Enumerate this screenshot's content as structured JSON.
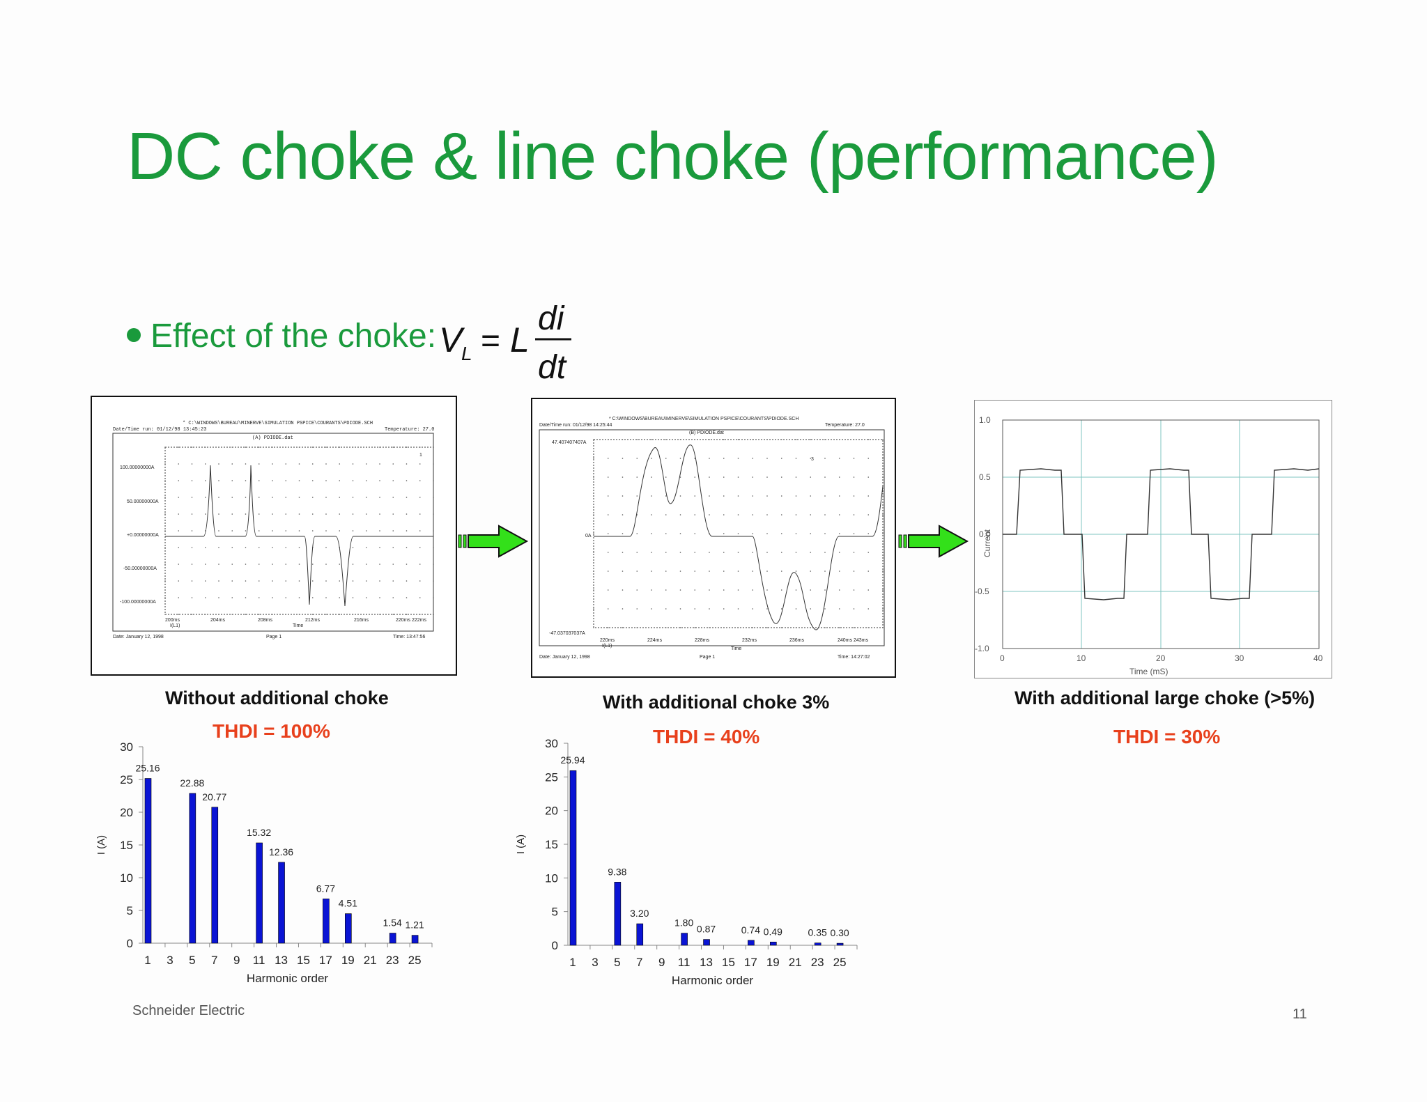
{
  "slide": {
    "title": "DC choke & line choke (performance)",
    "bullet": "Effect of the choke:",
    "formula": {
      "lhs": "V",
      "lhs_sub": "L",
      "eq": "=",
      "coef": "L",
      "num": "di",
      "den": "dt"
    },
    "footer_left": "Schneider Electric",
    "page_number": "11"
  },
  "colors": {
    "title": "#1a9a3c",
    "thdi": "#e8401c",
    "bar": "#0a14d4",
    "arrow": "#33e01a"
  },
  "panels": [
    {
      "caption": "Without additional choke",
      "thdi": "THDI = 100%",
      "scope": {
        "path": "* C:\\WINDOWS\\BUREAU\\MINERVE\\SIMULATION PSPICE\\COURANTS\\PDIODE.SCH",
        "date_run": "Date/Time run: 01/12/98 13:45:23",
        "temperature": "Temperature: 27.0",
        "dataset": "(A) PDIODE.dat",
        "ylabels": [
          "100.00000000A",
          "50.00000000A",
          "+0.00000000A",
          "-50.00000000A",
          "-100.00000000A"
        ],
        "xlabels": [
          "200ms",
          "204ms",
          "208ms",
          "212ms",
          "216ms",
          "220ms 222ms"
        ],
        "legend": "I(L1)",
        "xtitle": "Time",
        "date": "Date: January 12, 1998",
        "page": "Page 1",
        "time": "Time: 13:47:56",
        "marker": "1"
      }
    },
    {
      "caption": "With additional choke 3%",
      "thdi": "THDI = 40%",
      "scope": {
        "path": "* C:\\WINDOWS\\BUREAU\\MINERVE\\SIMULATION PSPICE\\COURANTS\\PDIODE.SCH",
        "date_run": "Date/Time run: 01/12/98 14:25:44",
        "temperature": "Temperature: 27.0",
        "dataset": "(B) PDIODE.dat",
        "ylabels": [
          "47.407407407A",
          "0A",
          "-47.037037037A"
        ],
        "xlabels": [
          "220ms",
          "224ms",
          "228ms",
          "232ms",
          "236ms",
          "240ms 243ms"
        ],
        "legend": "I(L1)",
        "xtitle": "Time",
        "date": "Date: January 12, 1998",
        "page": "Page 1",
        "time": "Time: 14:27:02",
        "marker": "3"
      }
    },
    {
      "caption": "With additional large choke (>5%)",
      "thdi": "THDI = 30%",
      "plot": {
        "ylabels": [
          "1.0",
          "0.5",
          "0.0",
          "-0.5",
          "-1.0"
        ],
        "xlabels": [
          "0",
          "10",
          "20",
          "30",
          "40"
        ],
        "ylabel": "Current",
        "xlabel": "Time (mS)"
      }
    }
  ],
  "chart_data": [
    {
      "type": "bar",
      "categories": [
        "1",
        "3",
        "5",
        "7",
        "9",
        "11",
        "13",
        "15",
        "17",
        "19",
        "21",
        "23",
        "25"
      ],
      "values": [
        25.16,
        0,
        22.88,
        20.77,
        0,
        15.32,
        12.36,
        0,
        6.77,
        4.51,
        0,
        1.54,
        1.21
      ],
      "data_labels": [
        "25.16",
        "",
        "22.88",
        "20.77",
        "",
        "15.32",
        "12.36",
        "",
        "6.77",
        "4.51",
        "",
        "1.54",
        "1.21"
      ],
      "yticks": [
        "0",
        "5",
        "10",
        "15",
        "20",
        "25",
        "30"
      ],
      "ylim": [
        0,
        30
      ],
      "xlabel": "Harmonic order",
      "ylabel": "I (A)"
    },
    {
      "type": "bar",
      "categories": [
        "1",
        "3",
        "5",
        "7",
        "9",
        "11",
        "13",
        "15",
        "17",
        "19",
        "21",
        "23",
        "25"
      ],
      "values": [
        25.94,
        0,
        9.38,
        3.2,
        0,
        1.8,
        0.87,
        0,
        0.74,
        0.49,
        0,
        0.35,
        0.3
      ],
      "data_labels": [
        "25.94",
        "",
        "9.38",
        "3.20",
        "",
        "1.80",
        "0.87",
        "",
        "0.74",
        "0.49",
        "",
        "0.35",
        "0.30"
      ],
      "yticks": [
        "0",
        "5",
        "10",
        "15",
        "20",
        "25",
        "30"
      ],
      "ylim": [
        0,
        30
      ],
      "xlabel": "Harmonic order",
      "ylabel": "I (A)"
    }
  ]
}
